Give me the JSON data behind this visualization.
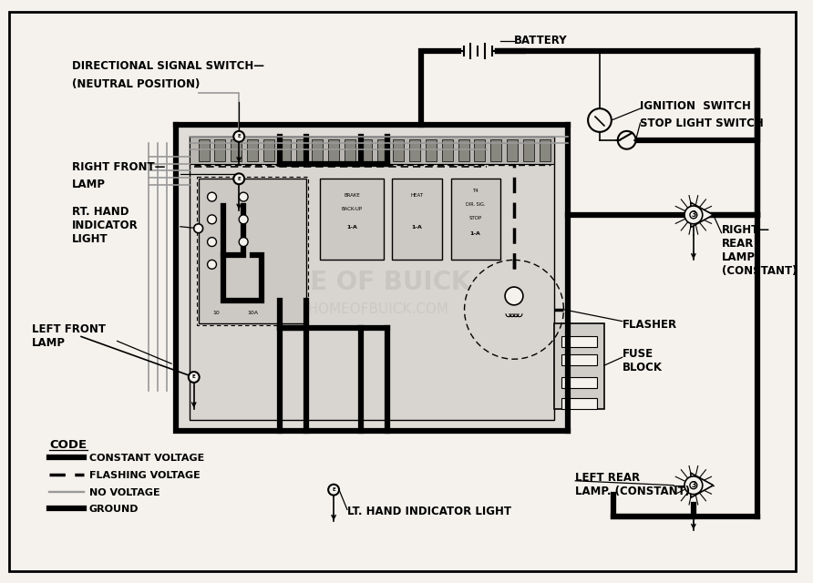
{
  "bg_color": "#f5f2ed",
  "black": "#000000",
  "gray_wire": "#999999",
  "labels": {
    "battery": "BATTERY",
    "ignition": "IGNITION  SWITCH",
    "stop_light": "STOP LIGHT SWITCH",
    "directional": "DIRECTIONAL SIGNAL SWITCH—",
    "directional2": "(NEUTRAL POSITION)",
    "right_front": "RIGHT FRONT—",
    "right_front2": "LAMP",
    "rt_hand": "RT. HAND\nINDICATOR\nLIGHT",
    "left_front": "LEFT FRONT\nLAMP",
    "right_rear": "RIGHT—\nREAR\nLAMP\n(CONSTANT)",
    "left_rear": "LEFT REAR\nLAMP. (CONSTANT)",
    "flasher": "FLASHER",
    "fuse_block": "FUSE\nBLOCK",
    "lt_hand": "LT. HAND INDICATOR LIGHT",
    "code": "CODE",
    "constant_voltage": "CONSTANT VOLTAGE",
    "flashing_voltage": "FLASHING VOLTAGE",
    "no_voltage": "NO VOLTAGE",
    "ground": "GROUND"
  }
}
